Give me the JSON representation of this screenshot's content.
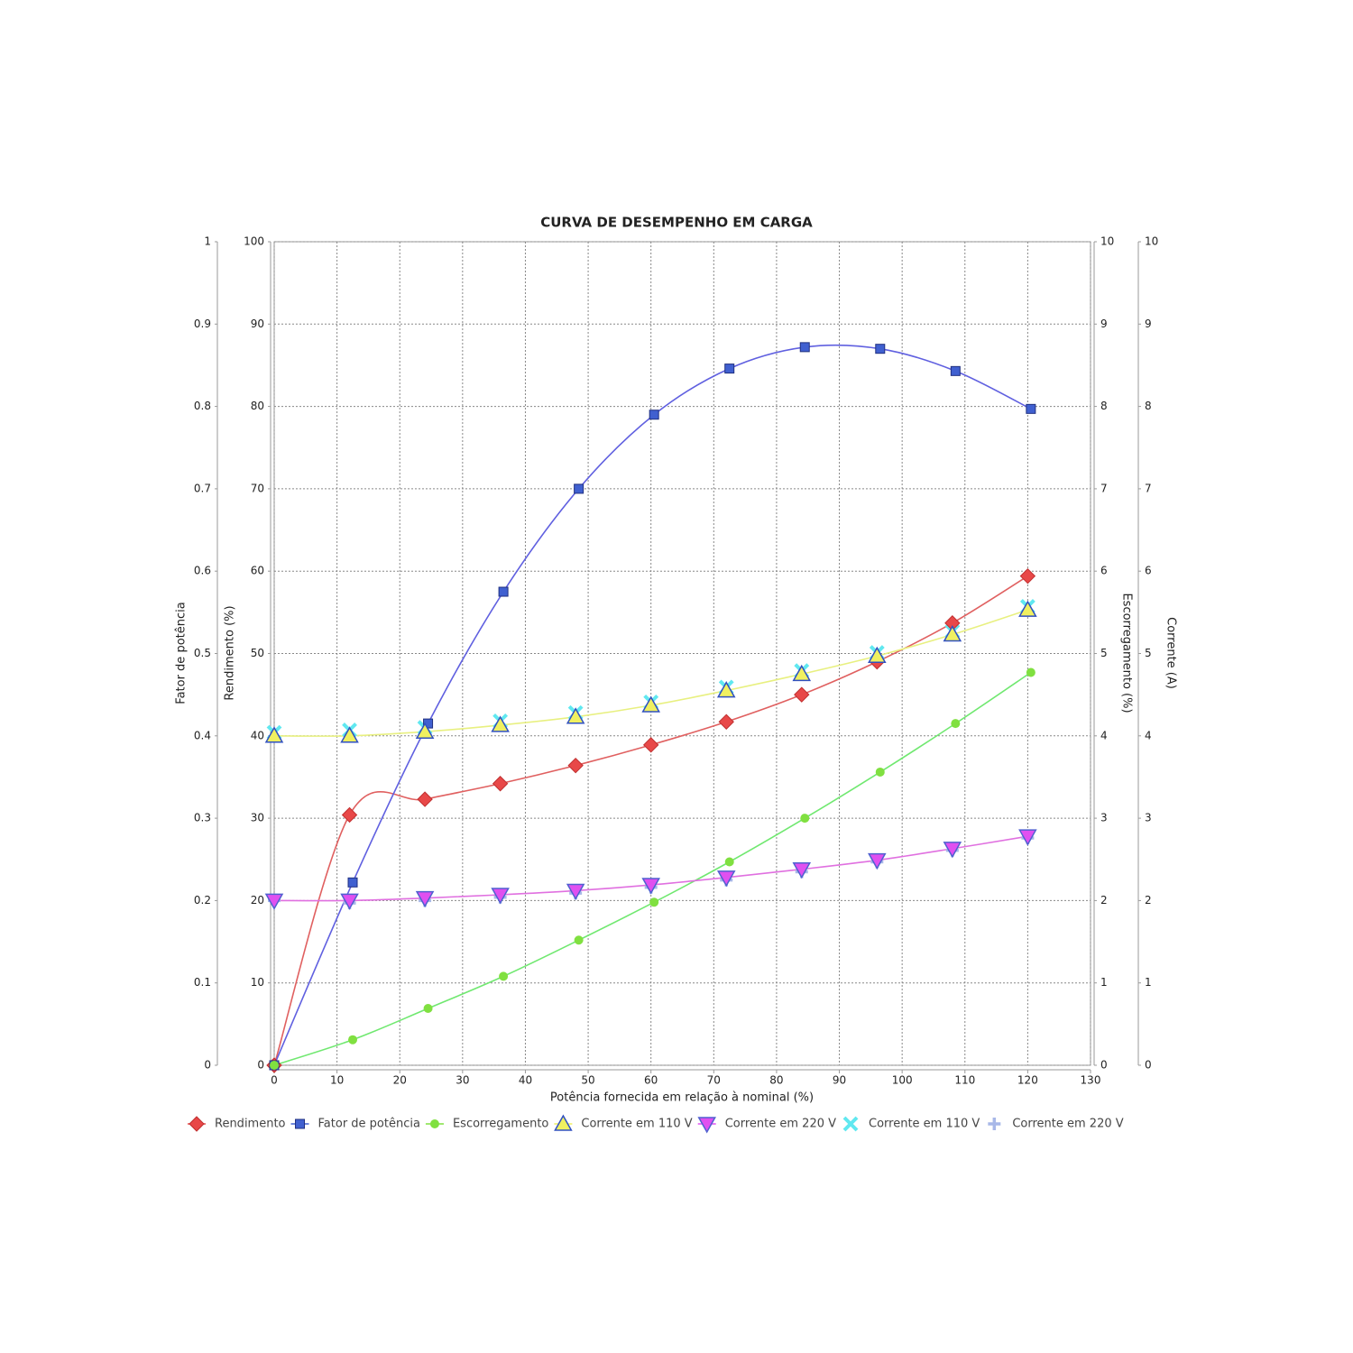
{
  "chart_data": {
    "type": "line",
    "title": "CURVA DE DESEMPENHO EM CARGA",
    "xlabel": "Potência fornecida em relação à nominal (%)",
    "xlim": [
      0,
      130
    ],
    "xticks": [
      0,
      10,
      20,
      30,
      40,
      50,
      60,
      70,
      80,
      90,
      100,
      110,
      120,
      130
    ],
    "ylabel": "Rendimento (%)",
    "ylim": [
      0,
      100
    ],
    "yticks": [
      0,
      10,
      20,
      30,
      40,
      50,
      60,
      70,
      80,
      90,
      100
    ],
    "y2label": "Escorregamento (%)",
    "y2lim": [
      0,
      10
    ],
    "y2ticks": [
      0,
      1,
      2,
      3,
      4,
      5,
      6,
      7,
      8,
      9,
      10
    ],
    "y3label": "Fator de potência",
    "y3lim": [
      0,
      1
    ],
    "y3ticks": [
      0,
      0.1,
      0.2,
      0.3,
      0.4,
      0.5,
      0.6,
      0.7,
      0.8,
      0.9,
      1
    ],
    "y4label": "Corrente (A)",
    "y4lim": [
      0,
      10
    ],
    "y4ticks": [
      0,
      1,
      2,
      3,
      4,
      5,
      6,
      7,
      8,
      9,
      10
    ],
    "grid": true,
    "series": [
      {
        "name": "Rendimento",
        "axis": "y",
        "marker": "diamond",
        "color": "#e84848",
        "line": true,
        "x": [
          0,
          12,
          24,
          36,
          48,
          60,
          72,
          84,
          96,
          108,
          120
        ],
        "values": [
          0,
          30.4,
          32.3,
          34.2,
          36.4,
          38.9,
          41.7,
          45.0,
          49.0,
          53.7,
          59.4
        ]
      },
      {
        "name": "Fator de potência",
        "axis": "y3",
        "marker": "square",
        "color": "#4060d0",
        "line": true,
        "x": [
          0,
          12.5,
          24.5,
          36.5,
          48.5,
          60.5,
          72.5,
          84.5,
          96.5,
          108.5,
          120.5
        ],
        "values": [
          0,
          0.222,
          0.415,
          0.575,
          0.7,
          0.79,
          0.846,
          0.872,
          0.87,
          0.843,
          0.797
        ]
      },
      {
        "name": "Escorregamento",
        "axis": "y2",
        "marker": "circle",
        "color": "#80e040",
        "line": true,
        "x": [
          0,
          12.5,
          24.5,
          36.5,
          48.5,
          60.5,
          72.5,
          84.5,
          96.5,
          108.5,
          120.5
        ],
        "values": [
          0,
          0.31,
          0.69,
          1.08,
          1.52,
          1.98,
          2.47,
          3.0,
          3.56,
          4.15,
          4.77
        ]
      },
      {
        "name": "Corrente em 110 V",
        "axis": "y4",
        "marker": "triangle-up",
        "color": "#f0f060",
        "line": true,
        "x": [
          0,
          12,
          24,
          36,
          48,
          60,
          72,
          84,
          96,
          108,
          120
        ],
        "values": [
          4.0,
          4.0,
          4.05,
          4.13,
          4.23,
          4.37,
          4.55,
          4.75,
          4.97,
          5.23,
          5.53
        ]
      },
      {
        "name": "Corrente em 220 V",
        "axis": "y4",
        "marker": "triangle-down",
        "color": "#e050f0",
        "line": true,
        "x": [
          0,
          12,
          24,
          36,
          48,
          60,
          72,
          84,
          96,
          108,
          120
        ],
        "values": [
          2.0,
          2.0,
          2.03,
          2.07,
          2.12,
          2.19,
          2.28,
          2.38,
          2.49,
          2.63,
          2.78
        ]
      },
      {
        "name": "Corrente em 110 V",
        "axis": "y4",
        "marker": "x",
        "color": "#60e8f0",
        "line": false,
        "x": [
          0,
          12,
          24,
          36,
          48,
          60,
          72,
          84,
          96,
          108,
          120
        ],
        "values": [
          4.04,
          4.07,
          4.1,
          4.18,
          4.28,
          4.41,
          4.59,
          4.79,
          5.01,
          5.27,
          5.57
        ]
      },
      {
        "name": "Corrente em 220 V",
        "axis": "y4",
        "marker": "plus",
        "color": "#a8b8e8",
        "line": false,
        "x": [
          0,
          12,
          24,
          36,
          48,
          60,
          72,
          84,
          96,
          108,
          120
        ],
        "values": [
          2.0,
          1.97,
          2.0,
          2.04,
          2.09,
          2.16,
          2.25,
          2.35,
          2.47,
          2.61,
          2.76
        ]
      }
    ]
  }
}
